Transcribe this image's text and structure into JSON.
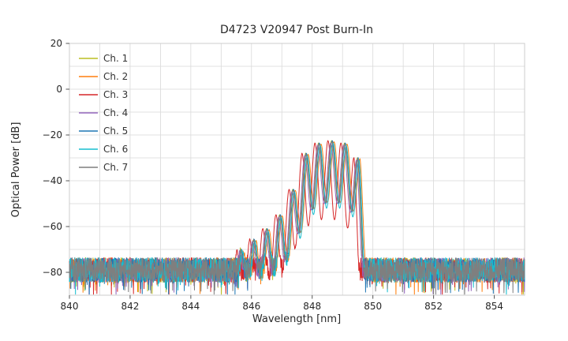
{
  "chart_data": {
    "type": "line",
    "title": "D4723 V20947 Post Burn-In",
    "xlabel": "Wavelength [nm]",
    "ylabel": "Optical Power [dB]",
    "xlim": [
      840,
      855
    ],
    "ylim": [
      -90,
      20
    ],
    "xticks": [
      840,
      842,
      844,
      846,
      848,
      850,
      852,
      854
    ],
    "xtick_labels": [
      "840",
      "842",
      "844",
      "846",
      "848",
      "850",
      "852",
      "854"
    ],
    "yticks": [
      20,
      0,
      -20,
      -40,
      -60,
      -80
    ],
    "ytick_labels": [
      "20",
      "0",
      "−20",
      "−40",
      "−60",
      "−80"
    ],
    "grid": true,
    "grid_minor_x_step_nm": 1,
    "grid_minor_y_step_db": 10,
    "grid_color": "#d9d9d9",
    "border_color": "#cccccc",
    "legend_position": "upper left",
    "sample_step_nm": 0.008,
    "random_seed": 42,
    "noise": {
      "center_db": -79,
      "half_range_db": 5.5,
      "spike_prob": 0.06,
      "spike_extra_db": 8
    },
    "envelope": {
      "mode_spacing_nm": 0.43,
      "mode_center_nm": 848.64,
      "left_falloff_db_per_nm": 120,
      "right_falloff_db_per_nm": 150,
      "mode_peaks": [
        {
          "x": 845.63,
          "y": -71
        },
        {
          "x": 846.06,
          "y": -66
        },
        {
          "x": 846.49,
          "y": -61
        },
        {
          "x": 846.92,
          "y": -55
        },
        {
          "x": 847.35,
          "y": -44
        },
        {
          "x": 847.78,
          "y": -28
        },
        {
          "x": 848.21,
          "y": -23.5
        },
        {
          "x": 848.64,
          "y": -22.5
        },
        {
          "x": 849.07,
          "y": -23.5
        },
        {
          "x": 849.5,
          "y": -30
        }
      ]
    },
    "series": [
      {
        "name": "Ch. 1",
        "color": "#bcbd22",
        "x_shift": 0.0,
        "y_offset": 0,
        "mod_depth_db": 26
      },
      {
        "name": "Ch. 2",
        "color": "#ff7f0e",
        "x_shift": 0.08,
        "y_offset": -0.5,
        "mod_depth_db": 26
      },
      {
        "name": "Ch. 3",
        "color": "#d62728",
        "x_shift": -0.12,
        "y_offset": 0,
        "mod_depth_db": 34
      },
      {
        "name": "Ch. 4",
        "color": "#9467bd",
        "x_shift": -0.03,
        "y_offset": -1,
        "mod_depth_db": 26
      },
      {
        "name": "Ch. 5",
        "color": "#1f77b4",
        "x_shift": 0.02,
        "y_offset": 0,
        "mod_depth_db": 27
      },
      {
        "name": "Ch. 6",
        "color": "#17becf",
        "x_shift": 0.05,
        "y_offset": -1,
        "mod_depth_db": 28
      },
      {
        "name": "Ch. 7",
        "color": "#7f7f7f",
        "x_shift": 0.01,
        "y_offset": -0.5,
        "mod_depth_db": 26
      }
    ]
  }
}
